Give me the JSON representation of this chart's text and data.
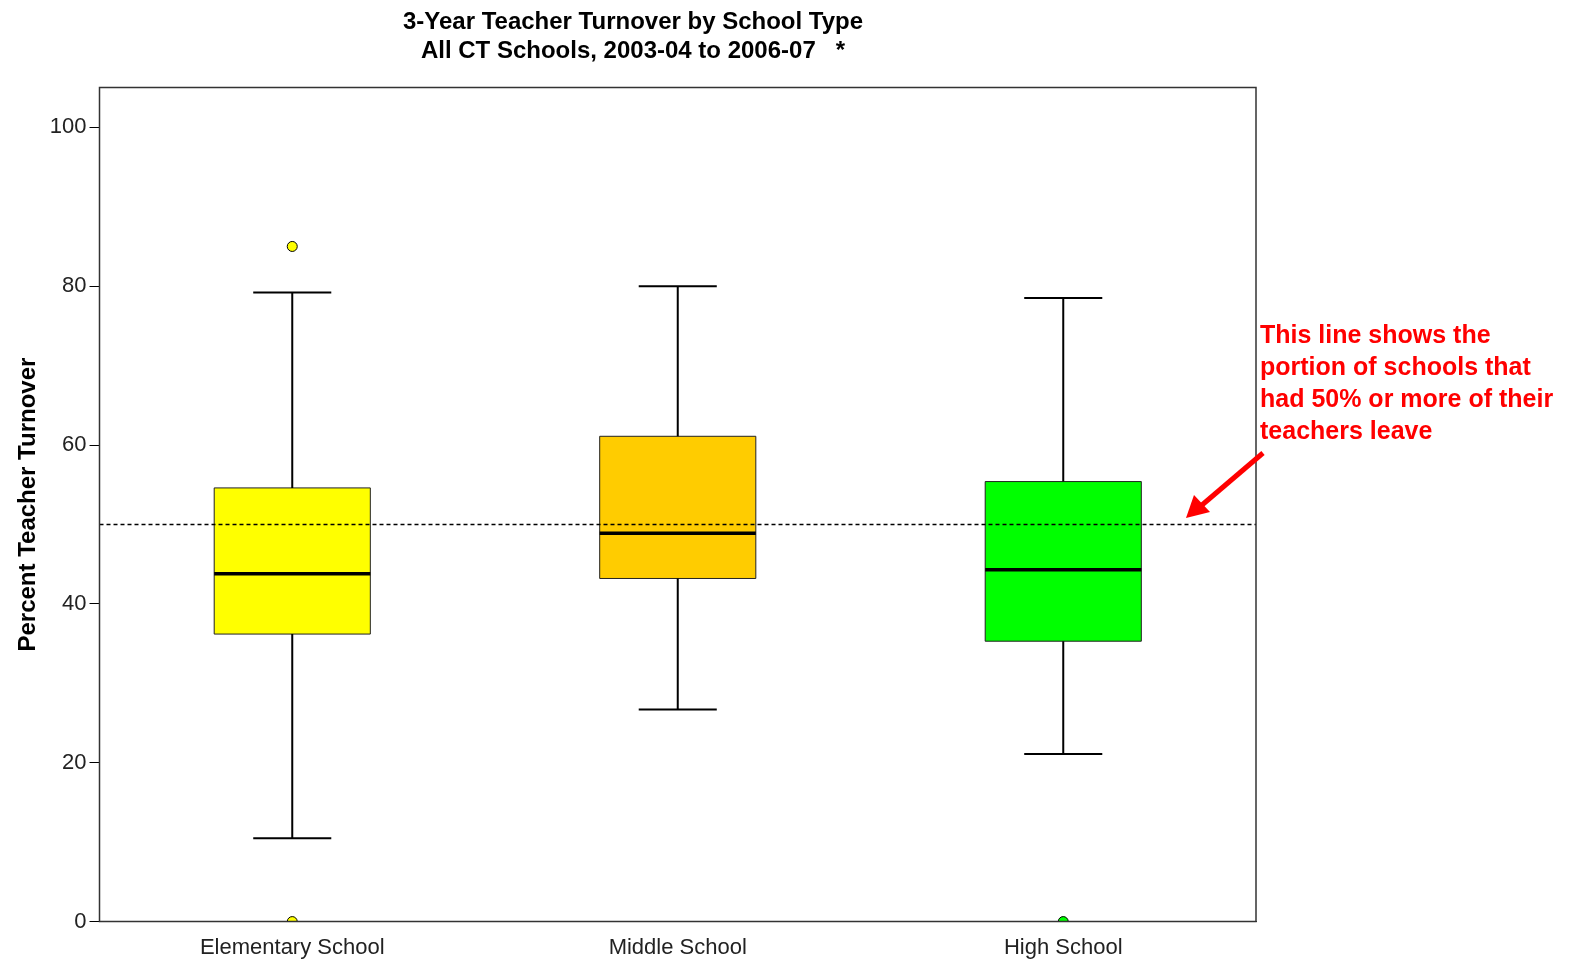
{
  "chart_data": {
    "type": "box",
    "title": "3-Year Teacher Turnover by School Type",
    "subtitle": "All CT Schools, 2003-04 to 2006-07   *",
    "ylabel": "Percent Teacher Turnover",
    "categories": [
      "Elementary School",
      "Middle School",
      "High School"
    ],
    "colors": [
      "#ffff00",
      "#ffcc00",
      "#00ff00"
    ],
    "boxes": [
      {
        "low": 10.5,
        "q1": 36.2,
        "median": 43.8,
        "q3": 54.6,
        "high": 79.2,
        "outliers": [
          85,
          0
        ]
      },
      {
        "low": 26.7,
        "q1": 43.2,
        "median": 48.9,
        "q3": 61.1,
        "high": 80
      },
      {
        "low": 21.1,
        "q1": 35.3,
        "median": 44.3,
        "q3": 55.4,
        "high": 78.5,
        "outliers": [
          0
        ]
      }
    ],
    "ylim": [
      0,
      105
    ],
    "yticks": [
      0,
      20,
      40,
      60,
      80,
      100
    ],
    "grid": false,
    "legend": false,
    "ref_lines": [
      {
        "axis": "y",
        "value": 50,
        "line_style": "dashed",
        "color": "#000000"
      }
    ],
    "annotations": [
      "This line shows the portion of schools that had 50% or more of their teachers leave"
    ]
  }
}
